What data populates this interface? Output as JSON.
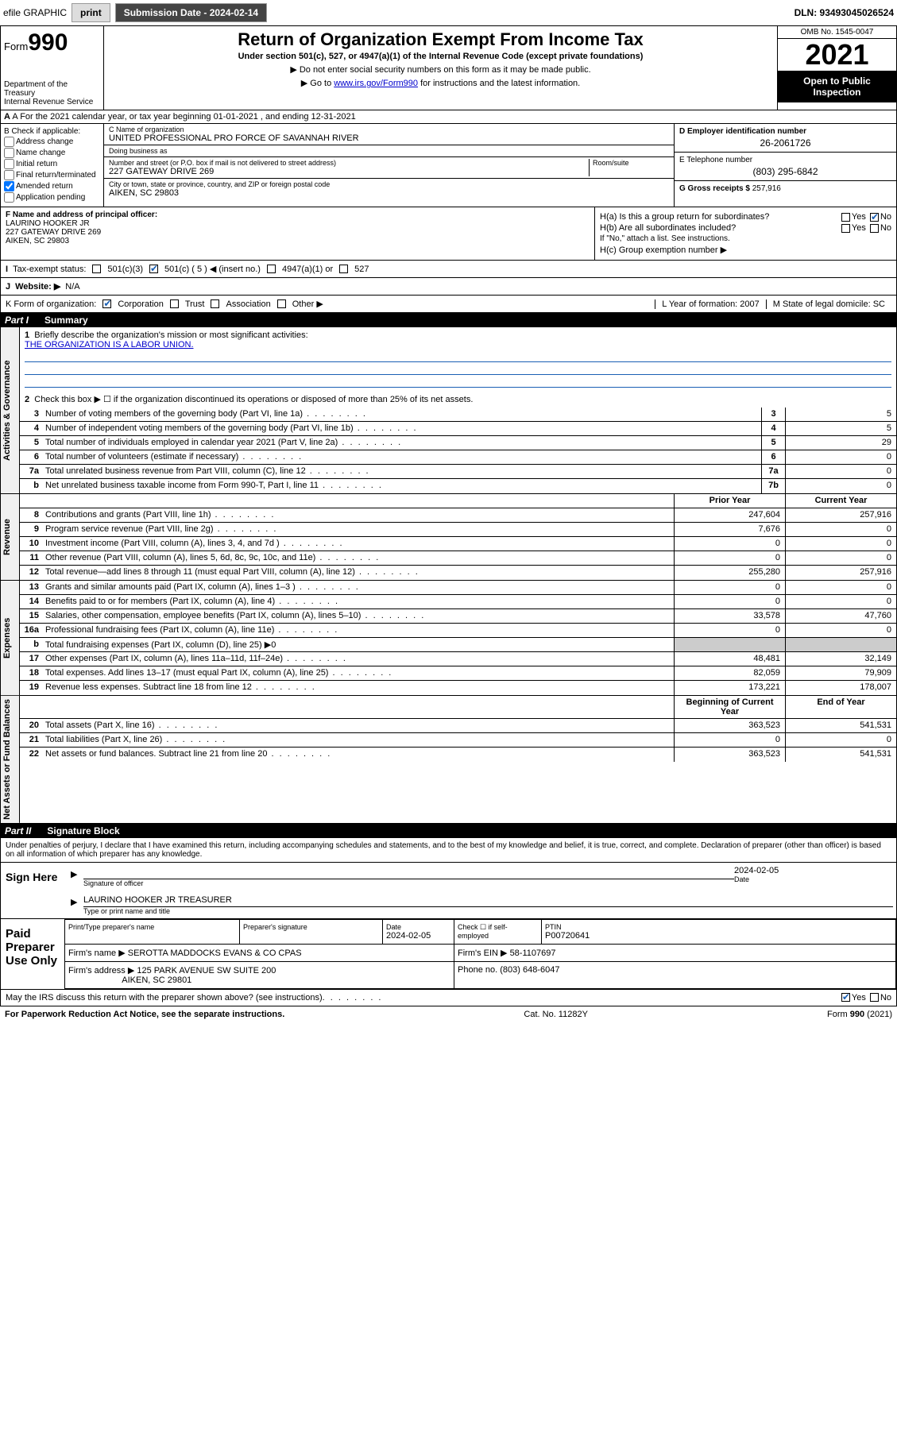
{
  "topbar": {
    "efile": "efile GRAPHIC",
    "print": "print",
    "submission_label": "Submission Date - 2024-02-14",
    "dln": "DLN: 93493045026524"
  },
  "header": {
    "form_word": "Form",
    "form_num": "990",
    "dept": "Department of the Treasury",
    "irs": "Internal Revenue Service",
    "title": "Return of Organization Exempt From Income Tax",
    "subtitle": "Under section 501(c), 527, or 4947(a)(1) of the Internal Revenue Code (except private foundations)",
    "note1": "▶ Do not enter social security numbers on this form as it may be made public.",
    "note2_pre": "▶ Go to ",
    "note2_link": "www.irs.gov/Form990",
    "note2_post": " for instructions and the latest information.",
    "omb": "OMB No. 1545-0047",
    "year": "2021",
    "open": "Open to Public Inspection"
  },
  "row_a": "A For the 2021 calendar year, or tax year beginning 01-01-2021   , and ending 12-31-2021",
  "b": {
    "label": "B Check if applicable:",
    "opts": [
      "Address change",
      "Name change",
      "Initial return",
      "Final return/terminated",
      "Amended return",
      "Application pending"
    ],
    "checked_idx": 4
  },
  "c": {
    "name_lbl": "C Name of organization",
    "name": "UNITED PROFESSIONAL PRO FORCE OF SAVANNAH RIVER",
    "dba_lbl": "Doing business as",
    "dba": "",
    "street_lbl": "Number and street (or P.O. box if mail is not delivered to street address)",
    "street": "227 GATEWAY DRIVE 269",
    "room_lbl": "Room/suite",
    "city_lbl": "City or town, state or province, country, and ZIP or foreign postal code",
    "city": "AIKEN, SC  29803"
  },
  "d": {
    "lbl": "D Employer identification number",
    "val": "26-2061726"
  },
  "e": {
    "lbl": "E Telephone number",
    "val": "(803) 295-6842"
  },
  "g": {
    "lbl": "G Gross receipts $",
    "val": "257,916"
  },
  "f": {
    "lbl": "F Name and address of principal officer:",
    "name": "LAURINO HOOKER JR",
    "street": "227 GATEWAY DRIVE 269",
    "city": "AIKEN, SC  29803"
  },
  "h": {
    "a": "H(a)  Is this a group return for subordinates?",
    "a_yes": "Yes",
    "a_no": "No",
    "b": "H(b)  Are all subordinates included?",
    "b_note": "If \"No,\" attach a list. See instructions.",
    "c": "H(c)  Group exemption number ▶"
  },
  "i": {
    "lbl": "Tax-exempt status:",
    "opts": [
      "501(c)(3)",
      "501(c) ( 5 ) ◀ (insert no.)",
      "4947(a)(1) or",
      "527"
    ],
    "checked_idx": 1
  },
  "j": {
    "lbl": "Website: ▶",
    "val": "N/A"
  },
  "k": {
    "lbl": "K Form of organization:",
    "opts": [
      "Corporation",
      "Trust",
      "Association",
      "Other ▶"
    ],
    "checked_idx": 0,
    "l": "L Year of formation: 2007",
    "m": "M State of legal domicile: SC"
  },
  "part1": {
    "num": "Part I",
    "title": "Summary"
  },
  "summary": {
    "q1": "Briefly describe the organization's mission or most significant activities:",
    "mission": "THE ORGANIZATION IS A LABOR UNION.",
    "q2": "Check this box ▶ ☐  if the organization discontinued its operations or disposed of more than 25% of its net assets.",
    "lines_gov": [
      {
        "n": "3",
        "t": "Number of voting members of the governing body (Part VI, line 1a)",
        "box": "3",
        "v": "5"
      },
      {
        "n": "4",
        "t": "Number of independent voting members of the governing body (Part VI, line 1b)",
        "box": "4",
        "v": "5"
      },
      {
        "n": "5",
        "t": "Total number of individuals employed in calendar year 2021 (Part V, line 2a)",
        "box": "5",
        "v": "29"
      },
      {
        "n": "6",
        "t": "Total number of volunteers (estimate if necessary)",
        "box": "6",
        "v": "0"
      },
      {
        "n": "7a",
        "t": "Total unrelated business revenue from Part VIII, column (C), line 12",
        "box": "7a",
        "v": "0"
      },
      {
        "n": "b",
        "t": "Net unrelated business taxable income from Form 990-T, Part I, line 11",
        "box": "7b",
        "v": "0"
      }
    ],
    "col_hdr_prior": "Prior Year",
    "col_hdr_curr": "Current Year",
    "revenue": [
      {
        "n": "8",
        "t": "Contributions and grants (Part VIII, line 1h)",
        "p": "247,604",
        "c": "257,916"
      },
      {
        "n": "9",
        "t": "Program service revenue (Part VIII, line 2g)",
        "p": "7,676",
        "c": "0"
      },
      {
        "n": "10",
        "t": "Investment income (Part VIII, column (A), lines 3, 4, and 7d )",
        "p": "0",
        "c": "0"
      },
      {
        "n": "11",
        "t": "Other revenue (Part VIII, column (A), lines 5, 6d, 8c, 9c, 10c, and 11e)",
        "p": "0",
        "c": "0"
      },
      {
        "n": "12",
        "t": "Total revenue—add lines 8 through 11 (must equal Part VIII, column (A), line 12)",
        "p": "255,280",
        "c": "257,916"
      }
    ],
    "expenses": [
      {
        "n": "13",
        "t": "Grants and similar amounts paid (Part IX, column (A), lines 1–3 )",
        "p": "0",
        "c": "0"
      },
      {
        "n": "14",
        "t": "Benefits paid to or for members (Part IX, column (A), line 4)",
        "p": "0",
        "c": "0"
      },
      {
        "n": "15",
        "t": "Salaries, other compensation, employee benefits (Part IX, column (A), lines 5–10)",
        "p": "33,578",
        "c": "47,760"
      },
      {
        "n": "16a",
        "t": "Professional fundraising fees (Part IX, column (A), line 11e)",
        "p": "0",
        "c": "0"
      },
      {
        "n": "b",
        "t": "Total fundraising expenses (Part IX, column (D), line 25) ▶0",
        "p": "",
        "c": "",
        "shade": true
      },
      {
        "n": "17",
        "t": "Other expenses (Part IX, column (A), lines 11a–11d, 11f–24e)",
        "p": "48,481",
        "c": "32,149"
      },
      {
        "n": "18",
        "t": "Total expenses. Add lines 13–17 (must equal Part IX, column (A), line 25)",
        "p": "82,059",
        "c": "79,909"
      },
      {
        "n": "19",
        "t": "Revenue less expenses. Subtract line 18 from line 12",
        "p": "173,221",
        "c": "178,007"
      }
    ],
    "col_hdr_beg": "Beginning of Current Year",
    "col_hdr_end": "End of Year",
    "netassets": [
      {
        "n": "20",
        "t": "Total assets (Part X, line 16)",
        "p": "363,523",
        "c": "541,531"
      },
      {
        "n": "21",
        "t": "Total liabilities (Part X, line 26)",
        "p": "0",
        "c": "0"
      },
      {
        "n": "22",
        "t": "Net assets or fund balances. Subtract line 21 from line 20",
        "p": "363,523",
        "c": "541,531"
      }
    ]
  },
  "part2": {
    "num": "Part II",
    "title": "Signature Block"
  },
  "decl": "Under penalties of perjury, I declare that I have examined this return, including accompanying schedules and statements, and to the best of my knowledge and belief, it is true, correct, and complete. Declaration of preparer (other than officer) is based on all information of which preparer has any knowledge.",
  "sign": {
    "here": "Sign Here",
    "sig_lbl": "Signature of officer",
    "date_lbl": "Date",
    "date": "2024-02-05",
    "name": "LAURINO HOOKER JR TREASURER",
    "name_lbl": "Type or print name and title"
  },
  "paid": {
    "title": "Paid Preparer Use Only",
    "cols": [
      "Print/Type preparer's name",
      "Preparer's signature",
      "Date",
      "Check ☐ if self-employed",
      "PTIN"
    ],
    "date": "2024-02-05",
    "ptin": "P00720641",
    "firm_name_lbl": "Firm's name   ▶",
    "firm_name": "SEROTTA MADDOCKS EVANS & CO CPAS",
    "firm_ein_lbl": "Firm's EIN ▶",
    "firm_ein": "58-1107697",
    "firm_addr_lbl": "Firm's address ▶",
    "firm_addr1": "125 PARK AVENUE SW SUITE 200",
    "firm_addr2": "AIKEN, SC  29801",
    "phone_lbl": "Phone no.",
    "phone": "(803) 648-6047"
  },
  "footer": {
    "discuss": "May the IRS discuss this return with the preparer shown above? (see instructions)",
    "yes": "Yes",
    "no": "No",
    "paperwork": "For Paperwork Reduction Act Notice, see the separate instructions.",
    "cat": "Cat. No. 11282Y",
    "form": "Form 990 (2021)"
  },
  "vtabs": {
    "gov": "Activities & Governance",
    "rev": "Revenue",
    "exp": "Expenses",
    "net": "Net Assets or Fund Balances"
  }
}
